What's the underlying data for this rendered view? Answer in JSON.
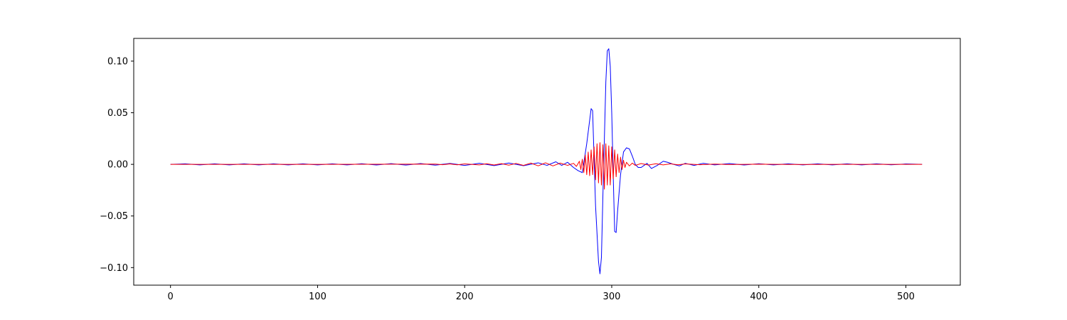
{
  "chart_data": {
    "type": "line",
    "title": "",
    "xlabel": "",
    "ylabel": "",
    "xlim": [
      -25,
      537
    ],
    "ylim": [
      -0.117,
      0.122
    ],
    "xticks": [
      0,
      100,
      200,
      300,
      400,
      500
    ],
    "yticks": [
      -0.1,
      -0.05,
      0.0,
      0.05,
      0.1
    ],
    "xtick_labels": [
      "0",
      "100",
      "200",
      "300",
      "400",
      "500"
    ],
    "ytick_labels": [
      "−0.10",
      "−0.05",
      "0.00",
      "0.05",
      "0.10"
    ],
    "grid": false,
    "legend": "none",
    "series": [
      {
        "color": "#0000ff",
        "points": [
          [
            0,
            0.0
          ],
          [
            10,
            0.0005
          ],
          [
            20,
            -0.0005
          ],
          [
            30,
            0.0005
          ],
          [
            40,
            -0.0005
          ],
          [
            50,
            0.0005
          ],
          [
            60,
            -0.0005
          ],
          [
            70,
            0.0005
          ],
          [
            80,
            -0.0005
          ],
          [
            90,
            0.0005
          ],
          [
            100,
            -0.0005
          ],
          [
            110,
            0.0005
          ],
          [
            120,
            -0.0005
          ],
          [
            130,
            0.0006
          ],
          [
            140,
            -0.0006
          ],
          [
            150,
            0.0007
          ],
          [
            160,
            -0.0007
          ],
          [
            170,
            0.0008
          ],
          [
            180,
            -0.0008
          ],
          [
            190,
            0.0009
          ],
          [
            200,
            -0.001
          ],
          [
            210,
            0.001
          ],
          [
            220,
            -0.0012
          ],
          [
            230,
            0.0013
          ],
          [
            240,
            -0.0013
          ],
          [
            250,
            0.0015
          ],
          [
            256,
            -0.001
          ],
          [
            262,
            0.0025
          ],
          [
            266,
            -0.001
          ],
          [
            270,
            0.002
          ],
          [
            274,
            -0.003
          ],
          [
            277,
            -0.006
          ],
          [
            280,
            -0.008
          ],
          [
            283,
            0.02
          ],
          [
            286,
            0.054
          ],
          [
            287,
            0.052
          ],
          [
            289,
            -0.04
          ],
          [
            291,
            -0.094
          ],
          [
            292,
            -0.106
          ],
          [
            293,
            -0.09
          ],
          [
            294,
            -0.03
          ],
          [
            296,
            0.08
          ],
          [
            297,
            0.11
          ],
          [
            298,
            0.112
          ],
          [
            299,
            0.095
          ],
          [
            300,
            0.05
          ],
          [
            301,
            -0.01
          ],
          [
            302,
            -0.065
          ],
          [
            303,
            -0.066
          ],
          [
            304,
            -0.045
          ],
          [
            306,
            -0.01
          ],
          [
            308,
            0.012
          ],
          [
            310,
            0.016
          ],
          [
            312,
            0.015
          ],
          [
            314,
            0.008
          ],
          [
            316,
            0.0
          ],
          [
            318,
            -0.003
          ],
          [
            320,
            -0.003
          ],
          [
            322,
            -0.001
          ],
          [
            324,
            0.001
          ],
          [
            327,
            -0.004
          ],
          [
            331,
            -0.001
          ],
          [
            335,
            0.003
          ],
          [
            338,
            0.002
          ],
          [
            342,
            0.0
          ],
          [
            346,
            -0.0015
          ],
          [
            350,
            0.001
          ],
          [
            356,
            -0.001
          ],
          [
            362,
            0.001
          ],
          [
            370,
            -0.0005
          ],
          [
            380,
            0.0008
          ],
          [
            390,
            -0.0006
          ],
          [
            400,
            0.0006
          ],
          [
            410,
            -0.0005
          ],
          [
            420,
            0.0005
          ],
          [
            430,
            -0.0005
          ],
          [
            440,
            0.0005
          ],
          [
            450,
            -0.0005
          ],
          [
            460,
            0.0005
          ],
          [
            470,
            -0.0005
          ],
          [
            480,
            0.0005
          ],
          [
            490,
            -0.0004
          ],
          [
            500,
            0.0004
          ],
          [
            511,
            0.0
          ]
        ]
      },
      {
        "color": "#ff0000",
        "points": [
          [
            0,
            0.0
          ],
          [
            100,
            0.0
          ],
          [
            180,
            0.0003
          ],
          [
            185,
            -0.0003
          ],
          [
            190,
            0.0004
          ],
          [
            195,
            -0.0004
          ],
          [
            200,
            0.0004
          ],
          [
            210,
            -0.0005
          ],
          [
            215,
            0.0006
          ],
          [
            220,
            -0.0006
          ],
          [
            225,
            0.0007
          ],
          [
            230,
            -0.0008
          ],
          [
            235,
            0.0009
          ],
          [
            240,
            -0.001
          ],
          [
            245,
            0.0012
          ],
          [
            250,
            -0.0014
          ],
          [
            255,
            0.0015
          ],
          [
            260,
            -0.0015
          ],
          [
            265,
            0.0012
          ],
          [
            270,
            -0.001
          ],
          [
            274,
            0.001
          ],
          [
            276,
            -0.002
          ],
          [
            278,
            0.003
          ],
          [
            279.0,
            -0.005
          ],
          [
            280.0,
            0.005
          ],
          [
            281.0,
            -0.008
          ],
          [
            282.0,
            0.009
          ],
          [
            283.0,
            -0.01
          ],
          [
            284.0,
            0.012
          ],
          [
            285.0,
            -0.011
          ],
          [
            286.0,
            0.014
          ],
          [
            287.0,
            -0.01
          ],
          [
            288.0,
            0.017
          ],
          [
            289.0,
            -0.015
          ],
          [
            290.0,
            0.02
          ],
          [
            291.0,
            -0.018
          ],
          [
            292.0,
            0.021
          ],
          [
            293.0,
            -0.02
          ],
          [
            294.0,
            0.019
          ],
          [
            295.0,
            -0.024
          ],
          [
            296.0,
            0.02
          ],
          [
            297.0,
            -0.02
          ],
          [
            298.0,
            0.018
          ],
          [
            299.0,
            -0.02
          ],
          [
            300.0,
            0.017
          ],
          [
            301.0,
            -0.014
          ],
          [
            302.0,
            0.014
          ],
          [
            303.0,
            -0.012
          ],
          [
            304.0,
            0.01
          ],
          [
            305.0,
            -0.008
          ],
          [
            306.0,
            0.007
          ],
          [
            307.0,
            -0.005
          ],
          [
            308.0,
            0.004
          ],
          [
            309.0,
            -0.003
          ],
          [
            310.0,
            0.002
          ],
          [
            312,
            -0.0015
          ],
          [
            314,
            0.0012
          ],
          [
            316,
            -0.001
          ],
          [
            320,
            0.0008
          ],
          [
            325,
            -0.0007
          ],
          [
            330,
            0.0006
          ],
          [
            335,
            -0.0005
          ],
          [
            340,
            0.0005
          ],
          [
            345,
            -0.0004
          ],
          [
            350,
            0.0004
          ],
          [
            360,
            -0.0003
          ],
          [
            370,
            0.0003
          ],
          [
            380,
            -0.0002
          ],
          [
            400,
            0.0002
          ],
          [
            420,
            -0.0001
          ],
          [
            450,
            0.0
          ],
          [
            511,
            0.0
          ]
        ]
      }
    ]
  }
}
